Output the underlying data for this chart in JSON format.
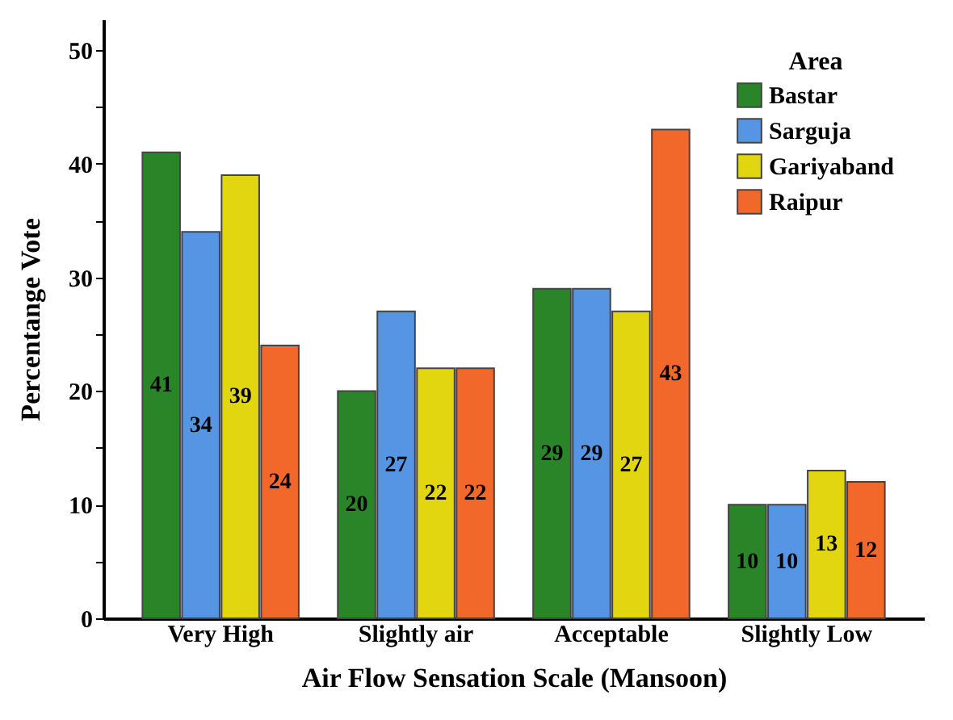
{
  "chart_data": {
    "type": "bar",
    "xlabel": "Air Flow Sensation Scale (Mansoon)",
    "ylabel": "Percentange Vote",
    "legend_title": "Area",
    "categories": [
      "Very High",
      "Slightly air",
      "Acceptable",
      "Slightly Low"
    ],
    "series": [
      {
        "name": "Bastar",
        "color": "#2a8529",
        "values": [
          41,
          20,
          29,
          10
        ]
      },
      {
        "name": "Sarguja",
        "color": "#5595e3",
        "values": [
          34,
          27,
          29,
          10
        ]
      },
      {
        "name": "Gariyaband",
        "color": "#e2d611",
        "values": [
          39,
          22,
          27,
          13
        ]
      },
      {
        "name": "Raipur",
        "color": "#f2672a",
        "values": [
          24,
          22,
          43,
          12
        ]
      }
    ],
    "ylim": [
      0,
      52.7
    ],
    "yticks": [
      0,
      {
        "value": 5,
        "label": null
      },
      10,
      {
        "value": 15,
        "label": null
      },
      20,
      {
        "value": 25,
        "label": null
      },
      30,
      {
        "value": 35,
        "label": null
      },
      40,
      {
        "value": 45,
        "label": null
      },
      50
    ],
    "data_labels": true,
    "legend": "top right",
    "grid": false
  }
}
